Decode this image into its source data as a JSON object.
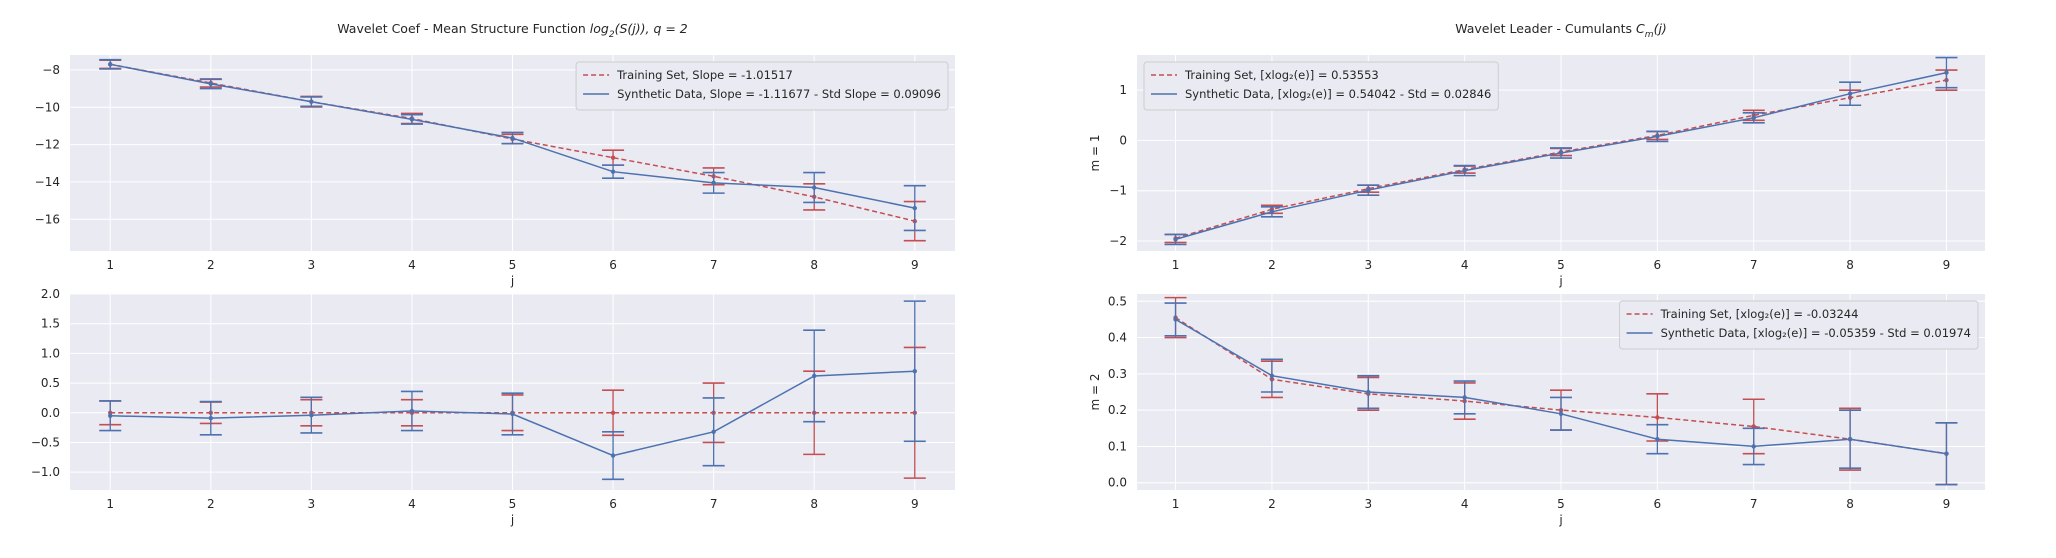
{
  "colors": {
    "training": "#c44e52",
    "synthetic": "#4c72b0",
    "panel_bg": "#eaeaf2",
    "grid": "#ffffff"
  },
  "chart_data": [
    {
      "type": "line",
      "title_parts": [
        "Wavelet Coef - Mean Structure Function ",
        "log",
        "2",
        "(S(j)), q = 2"
      ],
      "xlabel": "j",
      "ylabel": "",
      "x": [
        1,
        2,
        3,
        4,
        5,
        6,
        7,
        8,
        9
      ],
      "xlim": [
        0.6,
        9.4
      ],
      "ylim": [
        -17.7,
        -7.2
      ],
      "yticks": [
        -8,
        -10,
        -12,
        -14,
        -16
      ],
      "yticklabels": [
        "−8",
        "−10",
        "−12",
        "−14",
        "−16"
      ],
      "legend_loc": "upper-right",
      "series": [
        {
          "name": "Training Set, Slope = -1.01517",
          "style": "dashed",
          "values": [
            -7.7,
            -8.7,
            -9.7,
            -10.6,
            -11.7,
            -12.7,
            -13.7,
            -14.8,
            -16.1
          ],
          "errors": [
            0.22,
            0.22,
            0.28,
            0.27,
            0.25,
            0.4,
            0.45,
            0.7,
            1.05
          ]
        },
        {
          "name": "Synthetic Data, Slope = -1.11677 - Std Slope = 0.09096",
          "style": "solid",
          "values": [
            -7.7,
            -8.75,
            -9.7,
            -10.65,
            -11.65,
            -13.45,
            -14.05,
            -14.3,
            -15.4
          ],
          "errors": [
            0.25,
            0.25,
            0.25,
            0.25,
            0.3,
            0.35,
            0.55,
            0.8,
            1.2
          ]
        }
      ]
    },
    {
      "type": "line",
      "title_parts": [],
      "xlabel": "j",
      "ylabel": "",
      "x": [
        1,
        2,
        3,
        4,
        5,
        6,
        7,
        8,
        9
      ],
      "xlim": [
        0.6,
        9.4
      ],
      "ylim": [
        -1.3,
        2.0
      ],
      "yticks": [
        2.0,
        1.5,
        1.0,
        0.5,
        0.0,
        -0.5,
        -1.0
      ],
      "yticklabels": [
        "2.0",
        "1.5",
        "1.0",
        "0.5",
        "0.0",
        "−0.5",
        "−1.0"
      ],
      "legend_loc": "",
      "series": [
        {
          "name": "",
          "style": "dashed",
          "values": [
            0,
            0,
            0,
            0,
            0,
            0,
            0,
            0,
            0
          ],
          "errors": [
            0.2,
            0.18,
            0.22,
            0.22,
            0.3,
            0.38,
            0.5,
            0.7,
            1.1
          ]
        },
        {
          "name": "",
          "style": "solid",
          "values": [
            -0.05,
            -0.09,
            -0.04,
            0.03,
            -0.02,
            -0.72,
            -0.32,
            0.62,
            0.7
          ],
          "errors": [
            0.25,
            0.28,
            0.3,
            0.33,
            0.35,
            0.4,
            0.57,
            0.77,
            1.18
          ]
        }
      ]
    },
    {
      "type": "line",
      "title_parts": [
        "Wavelet Leader - Cumulants ",
        "C",
        "m",
        "(j)"
      ],
      "xlabel": "j",
      "ylabel": "m = 1",
      "x": [
        1,
        2,
        3,
        4,
        5,
        6,
        7,
        8,
        9
      ],
      "xlim": [
        0.6,
        9.4
      ],
      "ylim": [
        -2.2,
        1.7
      ],
      "yticks": [
        1,
        0,
        -1,
        -2
      ],
      "yticklabels": [
        "1",
        "0",
        "−1",
        "−2"
      ],
      "legend_loc": "upper-left",
      "series": [
        {
          "name": "Training Set, [xlog₂(e)] = 0.53553",
          "style": "dashed",
          "values": [
            -1.95,
            -1.37,
            -0.96,
            -0.58,
            -0.23,
            0.1,
            0.5,
            0.85,
            1.2
          ],
          "errors": [
            0.08,
            0.08,
            0.07,
            0.07,
            0.07,
            0.08,
            0.1,
            0.15,
            0.2
          ]
        },
        {
          "name": "Synthetic Data, [xlog₂(e)] = 0.54042 - Std = 0.02846",
          "style": "solid",
          "values": [
            -1.97,
            -1.42,
            -0.99,
            -0.6,
            -0.25,
            0.08,
            0.45,
            0.93,
            1.35
          ],
          "errors": [
            0.1,
            0.1,
            0.1,
            0.1,
            0.1,
            0.1,
            0.1,
            0.23,
            0.3
          ]
        }
      ]
    },
    {
      "type": "line",
      "title_parts": [],
      "xlabel": "j",
      "ylabel": "m = 2",
      "x": [
        1,
        2,
        3,
        4,
        5,
        6,
        7,
        8,
        9
      ],
      "xlim": [
        0.6,
        9.4
      ],
      "ylim": [
        -0.02,
        0.52
      ],
      "yticks": [
        0.5,
        0.4,
        0.3,
        0.2,
        0.1,
        0.0
      ],
      "yticklabels": [
        "0.5",
        "0.4",
        "0.3",
        "0.2",
        "0.1",
        "0.0"
      ],
      "legend_loc": "upper-right",
      "series": [
        {
          "name": "Training Set, [xlog₂(e)] = -0.03244",
          "style": "dashed",
          "values": [
            0.455,
            0.285,
            0.245,
            0.225,
            0.2,
            0.18,
            0.155,
            0.12,
            0.08
          ],
          "errors": [
            0.055,
            0.05,
            0.045,
            0.05,
            0.055,
            0.065,
            0.075,
            0.085,
            0.085
          ]
        },
        {
          "name": "Synthetic Data, [xlog₂(e)] = -0.05359 - Std = 0.01974",
          "style": "solid",
          "values": [
            0.45,
            0.295,
            0.25,
            0.235,
            0.19,
            0.12,
            0.1,
            0.12,
            0.08
          ],
          "errors": [
            0.045,
            0.045,
            0.045,
            0.045,
            0.045,
            0.04,
            0.05,
            0.08,
            0.085
          ]
        }
      ]
    }
  ]
}
